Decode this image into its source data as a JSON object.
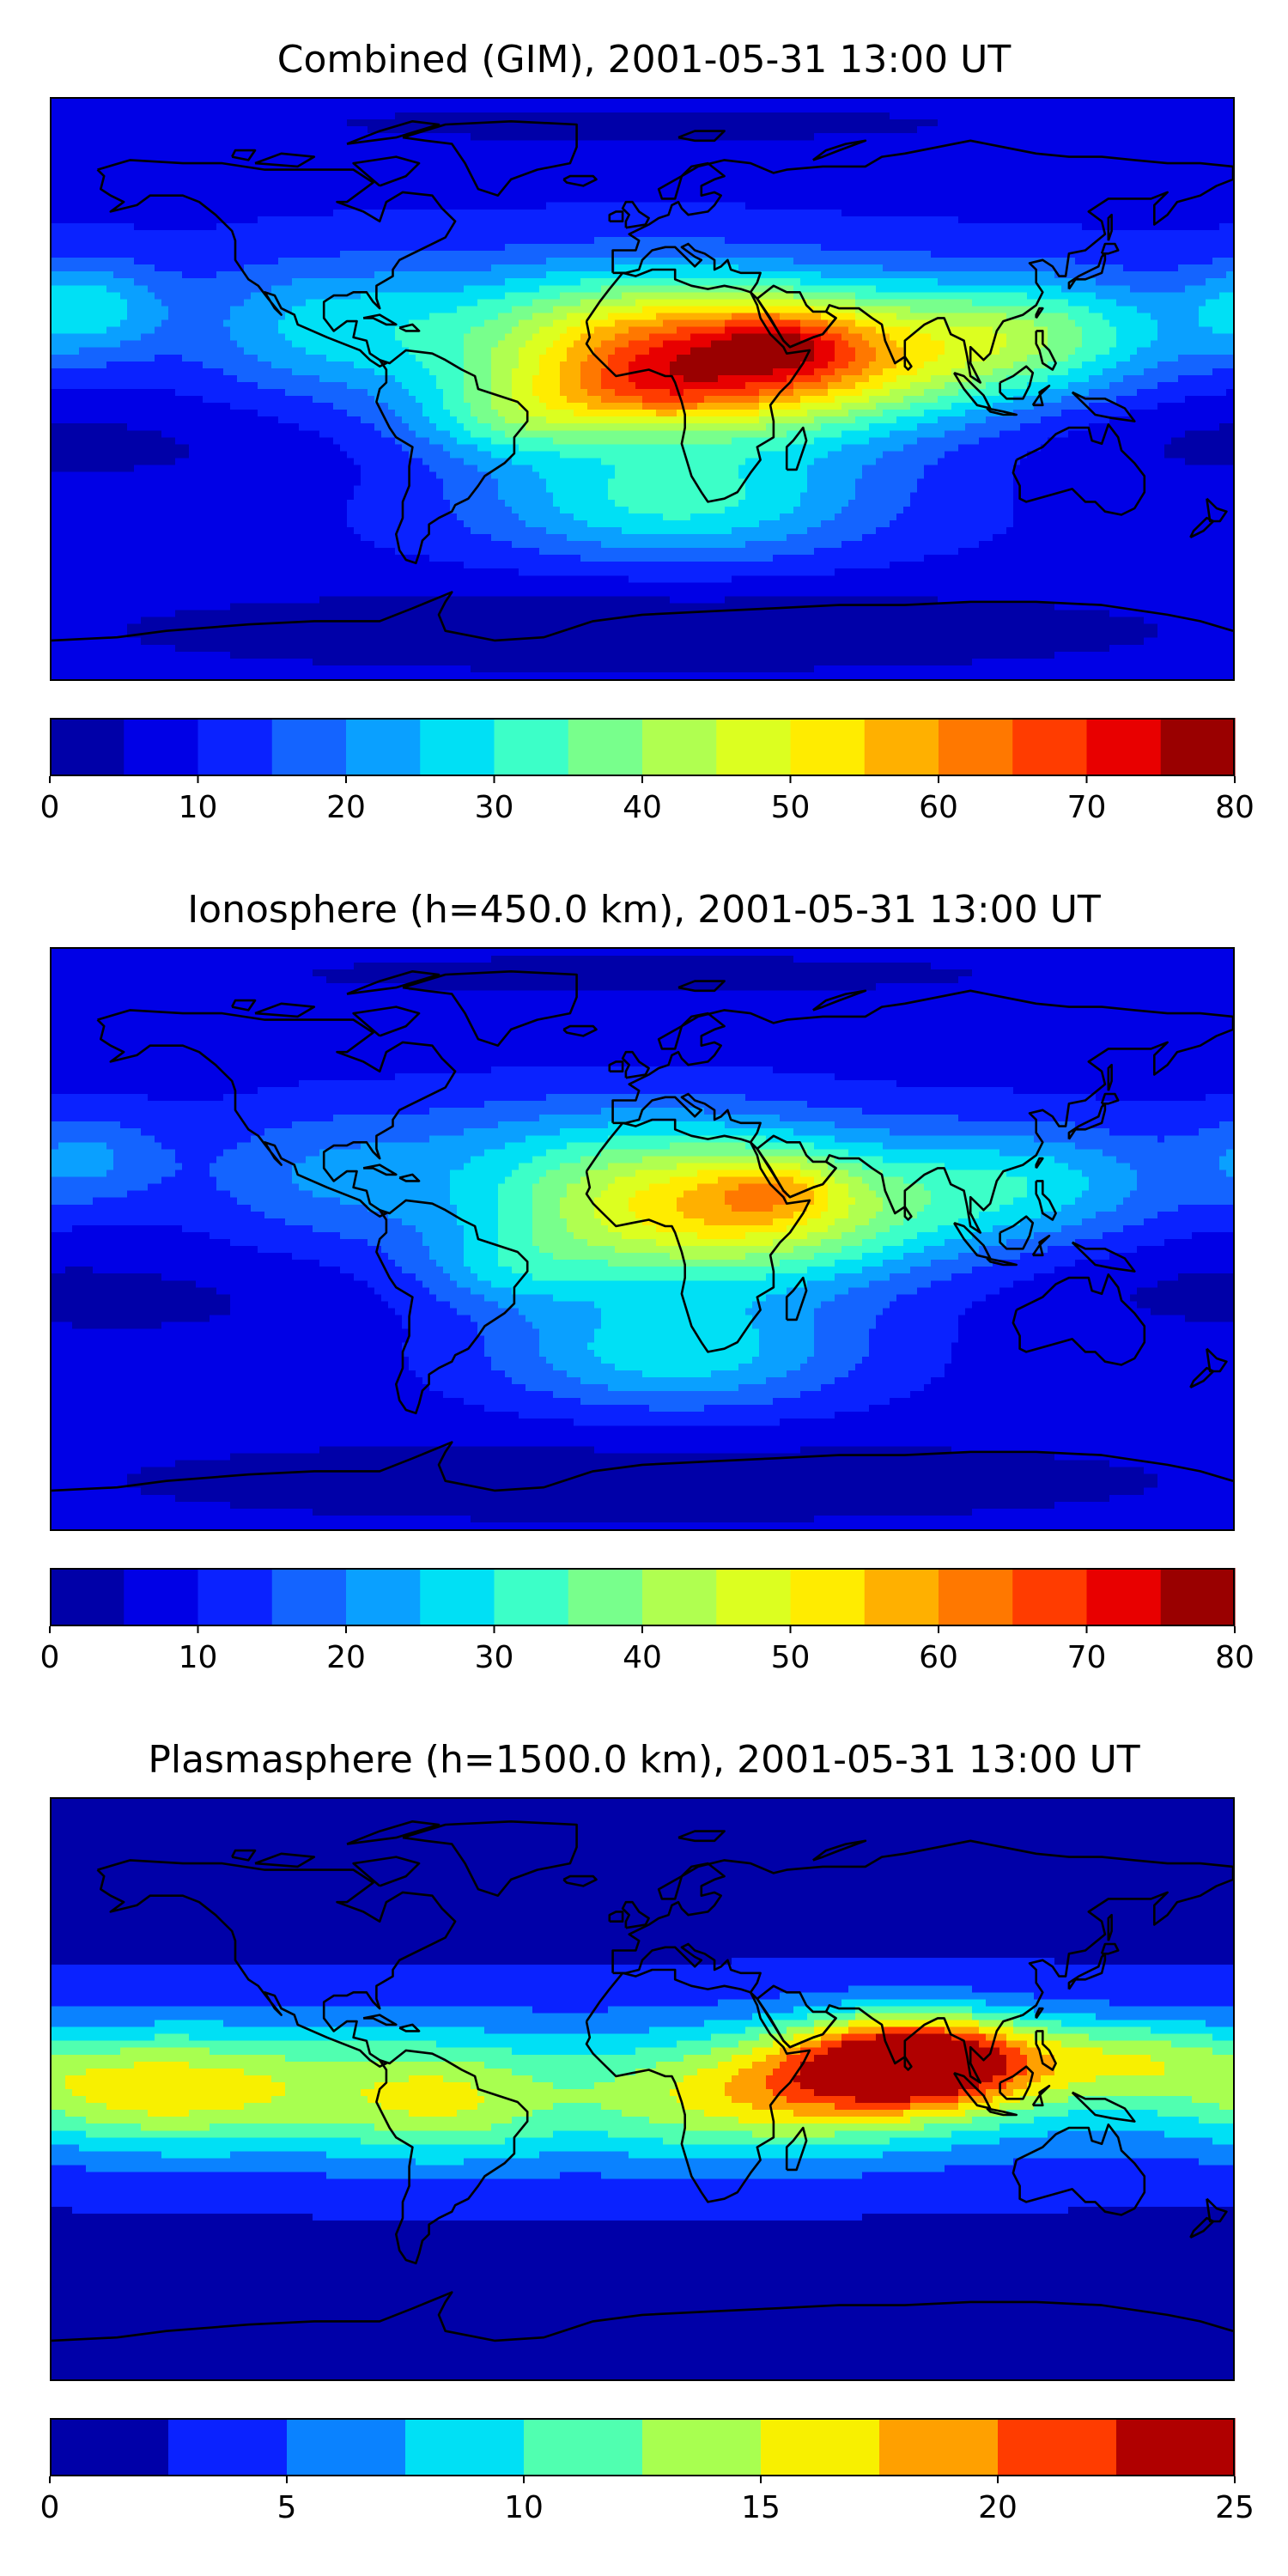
{
  "chart_data": [
    {
      "type": "heatmap",
      "title": "Combined (GIM), 2001-05-31 13:00 UT",
      "xlabel": "",
      "ylabel": "",
      "projection": "plate-carree",
      "xlim": [
        -180,
        180
      ],
      "ylim": [
        -90,
        90
      ],
      "coastlines": true,
      "colormap": "jet",
      "levels": [
        0,
        5,
        10,
        15,
        20,
        25,
        30,
        35,
        40,
        45,
        50,
        55,
        60,
        65,
        70,
        75,
        80
      ],
      "colors": [
        "#0000a8",
        "#0000e6",
        "#0a22ff",
        "#1464ff",
        "#0aa0ff",
        "#00e0f5",
        "#3cffc8",
        "#78ff8c",
        "#b0ff50",
        "#dcff20",
        "#ffec00",
        "#ffb000",
        "#ff7800",
        "#ff3c00",
        "#e80000",
        "#9a0000"
      ],
      "colorbar_ticks": [
        "0",
        "10",
        "20",
        "30",
        "40",
        "50",
        "60",
        "70",
        "80"
      ],
      "colorbar_tick_values": [
        0,
        10,
        20,
        30,
        40,
        50,
        60,
        70,
        80
      ],
      "background_value": 9,
      "field": [
        {
          "lon": 25,
          "lat": 8,
          "value": 62,
          "rlon": 75,
          "rlat": 22
        },
        {
          "lon": 45,
          "lat": 15,
          "value": 12,
          "rlon": 22,
          "rlat": 10
        },
        {
          "lon": 0,
          "lat": -2,
          "value": 10,
          "rlon": 30,
          "rlat": 10
        },
        {
          "lon": -40,
          "lat": -10,
          "value": 14,
          "rlon": 30,
          "rlat": 12
        },
        {
          "lon": 120,
          "lat": 18,
          "value": 22,
          "rlon": 45,
          "rlat": 18
        },
        {
          "lon": -10,
          "lat": 28,
          "value": 10,
          "rlon": 70,
          "rlat": 18
        },
        {
          "lon": 10,
          "lat": -35,
          "value": 22,
          "rlon": 60,
          "rlat": 18
        },
        {
          "lon": -100,
          "lat": 20,
          "value": 14,
          "rlon": 40,
          "rlat": 20
        },
        {
          "lon": -170,
          "lat": 25,
          "value": 18,
          "rlon": 25,
          "rlat": 15
        },
        {
          "lon": 160,
          "lat": -15,
          "value": -4,
          "rlon": 60,
          "rlat": 15
        },
        {
          "lon": -140,
          "lat": -20,
          "value": -3,
          "rlon": 60,
          "rlat": 15
        },
        {
          "lon": 0,
          "lat": -75,
          "value": -8,
          "rlon": 190,
          "rlat": 15
        },
        {
          "lon": 0,
          "lat": 82,
          "value": -5,
          "rlon": 190,
          "rlat": 10
        }
      ]
    },
    {
      "type": "heatmap",
      "title": "Ionosphere  (h=450.0 km), 2001-05-31 13:00 UT",
      "xlabel": "",
      "ylabel": "",
      "projection": "plate-carree",
      "xlim": [
        -180,
        180
      ],
      "ylim": [
        -90,
        90
      ],
      "coastlines": true,
      "colormap": "jet",
      "levels": [
        0,
        5,
        10,
        15,
        20,
        25,
        30,
        35,
        40,
        45,
        50,
        55,
        60,
        65,
        70,
        75,
        80
      ],
      "colors": [
        "#0000a8",
        "#0000e6",
        "#0a22ff",
        "#1464ff",
        "#0aa0ff",
        "#00e0f5",
        "#3cffc8",
        "#78ff8c",
        "#b0ff50",
        "#dcff20",
        "#ffec00",
        "#ffb000",
        "#ff7800",
        "#ff3c00",
        "#e80000",
        "#9a0000"
      ],
      "colorbar_ticks": [
        "0",
        "10",
        "20",
        "30",
        "40",
        "50",
        "60",
        "70",
        "80"
      ],
      "colorbar_tick_values": [
        0,
        10,
        20,
        30,
        40,
        50,
        60,
        70,
        80
      ],
      "background_value": 8,
      "field": [
        {
          "lon": 22,
          "lat": 8,
          "value": 45,
          "rlon": 70,
          "rlat": 22
        },
        {
          "lon": 40,
          "lat": 16,
          "value": 12,
          "rlon": 20,
          "rlat": 10
        },
        {
          "lon": -40,
          "lat": -10,
          "value": 10,
          "rlon": 28,
          "rlat": 12
        },
        {
          "lon": 10,
          "lat": -35,
          "value": 20,
          "rlon": 55,
          "rlat": 18
        },
        {
          "lon": -10,
          "lat": 30,
          "value": 10,
          "rlon": 70,
          "rlat": 18
        },
        {
          "lon": 120,
          "lat": 18,
          "value": 16,
          "rlon": 45,
          "rlat": 18
        },
        {
          "lon": -100,
          "lat": 20,
          "value": 10,
          "rlon": 40,
          "rlat": 20
        },
        {
          "lon": -170,
          "lat": 25,
          "value": 12,
          "rlon": 25,
          "rlat": 15
        },
        {
          "lon": 155,
          "lat": -15,
          "value": -3,
          "rlon": 60,
          "rlat": 15
        },
        {
          "lon": -140,
          "lat": -20,
          "value": -3,
          "rlon": 60,
          "rlat": 15
        },
        {
          "lon": 0,
          "lat": -75,
          "value": -6,
          "rlon": 190,
          "rlat": 15
        },
        {
          "lon": 0,
          "lat": 82,
          "value": -4,
          "rlon": 190,
          "rlat": 10
        }
      ]
    },
    {
      "type": "heatmap",
      "title": "Plasmasphere (h=1500.0 km), 2001-05-31 13:00 UT",
      "xlabel": "",
      "ylabel": "",
      "projection": "plate-carree",
      "xlim": [
        -180,
        180
      ],
      "ylim": [
        -90,
        90
      ],
      "coastlines": true,
      "colormap": "jet",
      "levels": [
        0,
        2.5,
        5,
        7.5,
        10,
        12.5,
        15,
        17.5,
        20,
        22.5,
        25
      ],
      "colors": [
        "#0000a8",
        "#0a22ff",
        "#0a82ff",
        "#00e0f5",
        "#50ffb0",
        "#a8ff50",
        "#f8f000",
        "#ffa000",
        "#ff3c00",
        "#b00000"
      ],
      "colorbar_ticks": [
        "0",
        "5",
        "10",
        "15",
        "20",
        "25"
      ],
      "colorbar_tick_values": [
        0,
        5,
        10,
        15,
        20,
        25
      ],
      "background_value": 2,
      "field": [
        {
          "lon": 85,
          "lat": 10,
          "value": 18,
          "rlon": 38,
          "rlat": 14
        },
        {
          "lon": 70,
          "lat": 2,
          "value": 6,
          "rlon": 55,
          "rlat": 16
        },
        {
          "lon": 150,
          "lat": 10,
          "value": 6,
          "rlon": 30,
          "rlat": 12
        },
        {
          "lon": 30,
          "lat": -5,
          "value": 5,
          "rlon": 55,
          "rlat": 18
        },
        {
          "lon": -160,
          "lat": 0,
          "value": 8,
          "rlon": 45,
          "rlat": 18
        },
        {
          "lon": -110,
          "lat": 0,
          "value": 5,
          "rlon": 55,
          "rlat": 20
        },
        {
          "lon": -60,
          "lat": -5,
          "value": 5,
          "rlon": 30,
          "rlat": 18
        },
        {
          "lon": 0,
          "lat": 0,
          "value": 7,
          "rlon": 220,
          "rlat": 25
        },
        {
          "lon": -40,
          "lat": 55,
          "value": -1,
          "rlon": 60,
          "rlat": 15
        },
        {
          "lon": 0,
          "lat": -65,
          "value": -2,
          "rlon": 190,
          "rlat": 15
        }
      ]
    }
  ]
}
